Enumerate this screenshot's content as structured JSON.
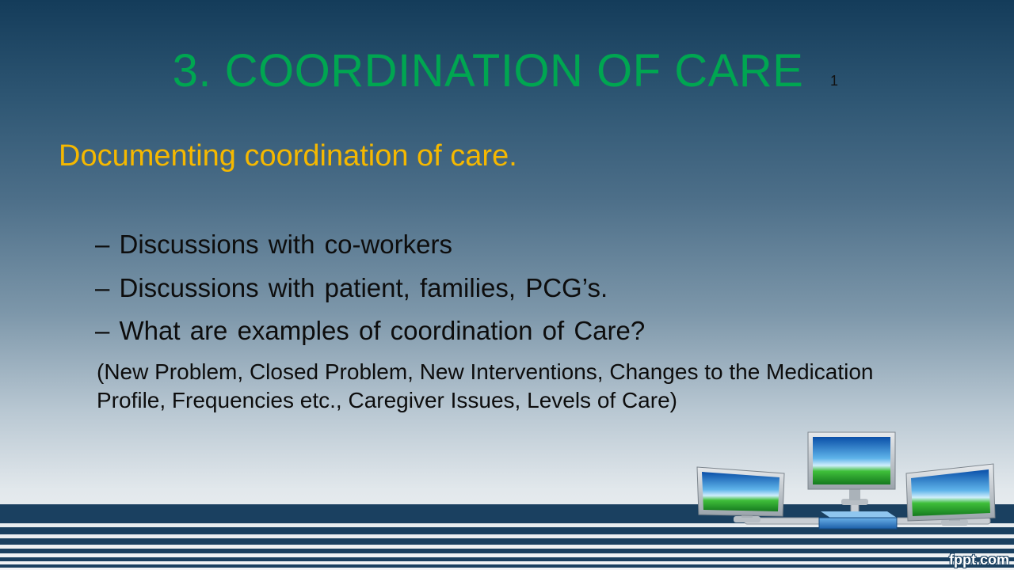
{
  "slide": {
    "title": "3. COORDINATION OF CARE",
    "slide_number": "1",
    "subtitle": "Documenting coordination of care.",
    "bullets": [
      "– Discussions with co-workers",
      "– Discussions with patient, families, PCG’s.",
      "– What are examples of coordination of Care?"
    ],
    "note": "(New Problem, Closed Problem, New Interventions, Changes to the Medication Profile, Frequencies etc., Caregiver Issues, Levels of Care)",
    "brand": "fppt.com"
  },
  "colors": {
    "title": "#00a651",
    "subtitle": "#f5b800",
    "band": "#1a4060"
  },
  "icons": [
    "monitor-icon",
    "network-hub-icon"
  ]
}
